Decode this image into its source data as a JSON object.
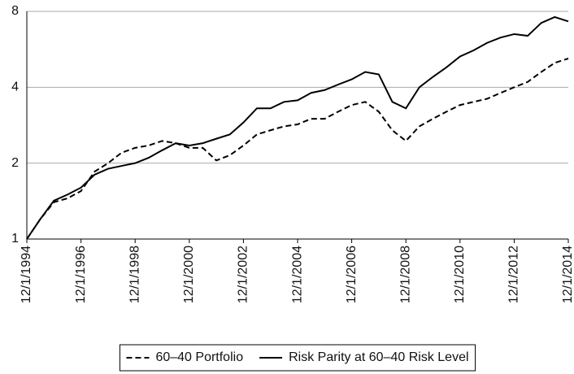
{
  "chart_data": {
    "type": "line",
    "log_scale": true,
    "grid": true,
    "legend": "bottom",
    "x": [
      "12/1/1994",
      "6/1/1995",
      "12/1/1995",
      "6/1/1996",
      "12/1/1996",
      "6/1/1997",
      "12/1/1997",
      "6/1/1998",
      "12/1/1998",
      "6/1/1999",
      "12/1/1999",
      "6/1/2000",
      "12/1/2000",
      "6/1/2001",
      "12/1/2001",
      "6/1/2002",
      "12/1/2002",
      "6/1/2003",
      "12/1/2003",
      "6/1/2004",
      "12/1/2004",
      "6/1/2005",
      "12/1/2005",
      "6/1/2006",
      "12/1/2006",
      "6/1/2007",
      "12/1/2007",
      "6/1/2008",
      "12/1/2008",
      "6/1/2009",
      "12/1/2009",
      "6/1/2010",
      "12/1/2010",
      "6/1/2011",
      "12/1/2011",
      "6/1/2012",
      "12/1/2012",
      "6/1/2013",
      "12/1/2013",
      "6/1/2014",
      "12/1/2014"
    ],
    "series": [
      {
        "name": "60–40 Portfolio",
        "color": "#000000",
        "style": "dashed",
        "values": [
          1.0,
          1.2,
          1.4,
          1.45,
          1.55,
          1.85,
          2.0,
          2.2,
          2.3,
          2.35,
          2.45,
          2.4,
          2.3,
          2.3,
          2.05,
          2.15,
          2.35,
          2.6,
          2.7,
          2.8,
          2.85,
          3.0,
          3.0,
          3.2,
          3.4,
          3.5,
          3.2,
          2.7,
          2.45,
          2.8,
          3.0,
          3.2,
          3.4,
          3.5,
          3.6,
          3.8,
          4.0,
          4.2,
          4.6,
          5.0,
          5.2
        ]
      },
      {
        "name": "Risk Parity at 60–40 Risk Level",
        "color": "#000000",
        "style": "solid",
        "values": [
          1.0,
          1.2,
          1.42,
          1.5,
          1.6,
          1.8,
          1.9,
          1.95,
          2.0,
          2.1,
          2.25,
          2.4,
          2.35,
          2.4,
          2.5,
          2.6,
          2.9,
          3.3,
          3.3,
          3.5,
          3.55,
          3.8,
          3.9,
          4.1,
          4.3,
          4.6,
          4.5,
          3.5,
          3.3,
          4.0,
          4.4,
          4.8,
          5.3,
          5.6,
          6.0,
          6.3,
          6.5,
          6.4,
          7.2,
          7.6,
          7.3
        ]
      }
    ],
    "xlim": [
      "12/1/1994",
      "12/1/2014"
    ],
    "xticks": [
      "12/1/1994",
      "12/1/1996",
      "12/1/1998",
      "12/1/2000",
      "12/1/2002",
      "12/1/2004",
      "12/1/2006",
      "12/1/2008",
      "12/1/2010",
      "12/1/2012",
      "12/1/2014"
    ],
    "ylim": [
      1,
      8
    ],
    "yticks": [
      1,
      2,
      4,
      8
    ]
  }
}
